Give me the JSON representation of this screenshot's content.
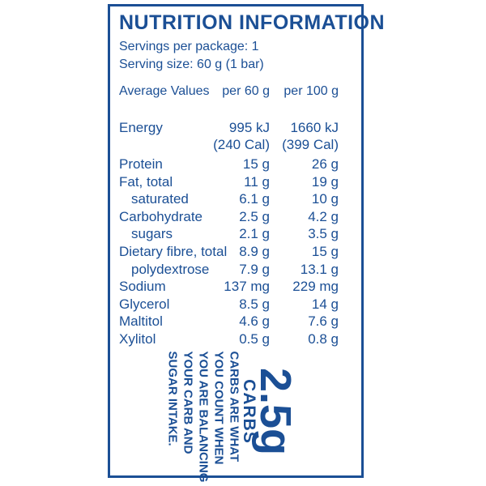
{
  "title": "NUTRITION INFORMATION",
  "servings_per_package": "Servings per package: 1",
  "serving_size": "Serving size: 60 g (1 bar)",
  "columns": {
    "label": "Average Values",
    "col1": "per 60 g",
    "col2": "per 100 g"
  },
  "energy": {
    "label": "Energy",
    "col1": "995 kJ",
    "col2": "1660 kJ",
    "col1_cal": "(240 Cal)",
    "col2_cal": "(399 Cal)"
  },
  "rows": [
    {
      "label": "Protein",
      "col1": "15 g",
      "col2": "26 g"
    },
    {
      "label": "Fat, total",
      "col1": "11 g",
      "col2": "19 g"
    },
    {
      "label": "saturated",
      "col1": "6.1 g",
      "col2": "10 g"
    },
    {
      "label": "Carbohydrate",
      "col1": "2.5 g",
      "col2": "4.2 g"
    },
    {
      "label": "sugars",
      "col1": "2.1 g",
      "col2": "3.5 g"
    },
    {
      "label": "Dietary fibre, total",
      "col1": "8.9 g",
      "col2": "15 g"
    },
    {
      "label": "polydextrose",
      "col1": "7.9 g",
      "col2": "13.1 g"
    },
    {
      "label": "Sodium",
      "col1": "137 mg",
      "col2": "229 mg"
    },
    {
      "label": "Glycerol",
      "col1": "8.5 g",
      "col2": "14 g"
    },
    {
      "label": "Maltitol",
      "col1": "4.6 g",
      "col2": "7.6 g"
    },
    {
      "label": "Xylitol",
      "col1": "0.5 g",
      "col2": "0.8 g"
    }
  ],
  "badge": {
    "value": "2.5g",
    "word": "CARBS"
  },
  "message": [
    "CARBS ARE WHAT",
    "YOU COUNT WHEN",
    "YOU ARE BALANCING",
    "YOUR CARB AND",
    "SUGAR INTAKE."
  ]
}
